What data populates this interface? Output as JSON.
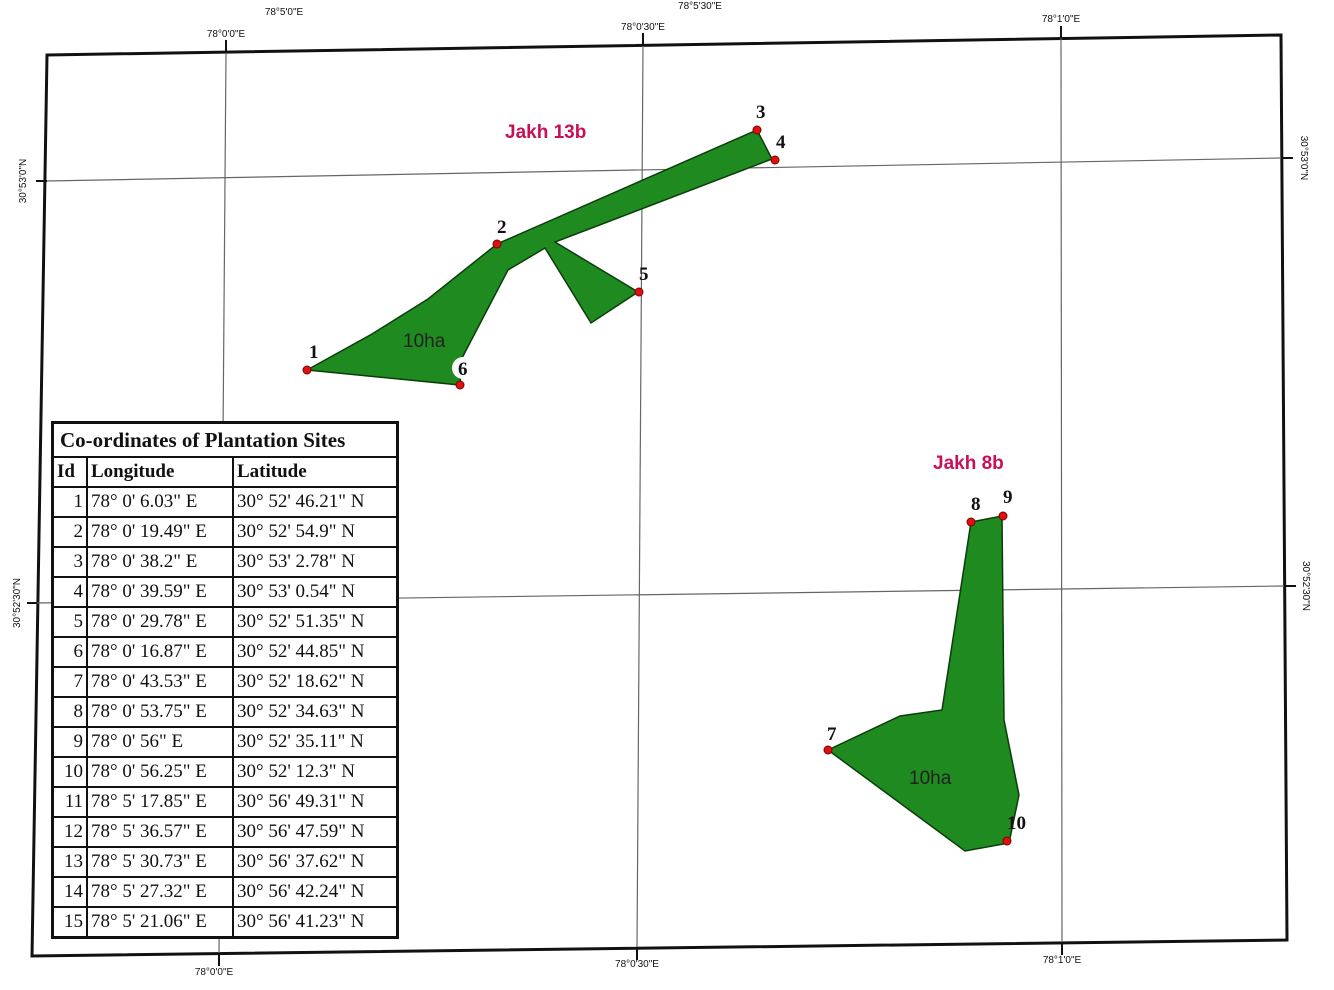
{
  "map": {
    "top_ticks": [
      "78°5'0\"E",
      "78°0'0\"E",
      "78°0'30\"E",
      "78°5'30\"E",
      "78°1'0\"E"
    ],
    "bottom_ticks": [
      "78°0'0\"E",
      "78°0'30\"E",
      "78°1'0\"E"
    ],
    "left_ticks": [
      "30°53'0\"N",
      "30°52'30\"N"
    ],
    "right_ticks": [
      "30°53'0\"N",
      "30°52'30\"N"
    ],
    "sites": [
      {
        "name": "Jakh 13b",
        "area": "10ha"
      },
      {
        "name": "Jakh 8b",
        "area": "10ha"
      }
    ],
    "points": [
      "1",
      "2",
      "3",
      "4",
      "5",
      "6",
      "7",
      "8",
      "9",
      "10"
    ],
    "colors": {
      "polygon_fill": "#1f8a1f",
      "polygon_stroke": "#0b3d0b",
      "point": "#e01010",
      "site_label": "#c8105a",
      "grid": "#555555"
    }
  },
  "table": {
    "title": "Co-ordinates of Plantation Sites",
    "headers": [
      "Id",
      "Longitude",
      "Latitude"
    ],
    "rows": [
      [
        "1",
        "78° 0' 6.03\" E",
        "30° 52' 46.21\" N"
      ],
      [
        "2",
        "78° 0' 19.49\" E",
        "30° 52' 54.9\" N"
      ],
      [
        "3",
        "78° 0' 38.2\" E",
        "30° 53' 2.78\" N"
      ],
      [
        "4",
        "78° 0' 39.59\" E",
        "30° 53' 0.54\" N"
      ],
      [
        "5",
        "78° 0' 29.78\" E",
        "30° 52' 51.35\" N"
      ],
      [
        "6",
        "78° 0' 16.87\" E",
        "30° 52' 44.85\" N"
      ],
      [
        "7",
        "78° 0' 43.53\" E",
        "30° 52' 18.62\" N"
      ],
      [
        "8",
        "78° 0' 53.75\" E",
        "30° 52' 34.63\" N"
      ],
      [
        "9",
        "78° 0' 56\" E",
        "30° 52' 35.11\" N"
      ],
      [
        "10",
        "78° 0' 56.25\" E",
        "30° 52' 12.3\" N"
      ],
      [
        "11",
        "78° 5' 17.85\" E",
        "30° 56' 49.31\" N"
      ],
      [
        "12",
        "78° 5' 36.57\" E",
        "30° 56' 47.59\" N"
      ],
      [
        "13",
        "78° 5' 30.73\" E",
        "30° 56' 37.62\" N"
      ],
      [
        "14",
        "78° 5' 27.32\" E",
        "30° 56' 42.24\" N"
      ],
      [
        "15",
        "78° 5' 21.06\" E",
        "30° 56' 41.23\" N"
      ]
    ]
  }
}
